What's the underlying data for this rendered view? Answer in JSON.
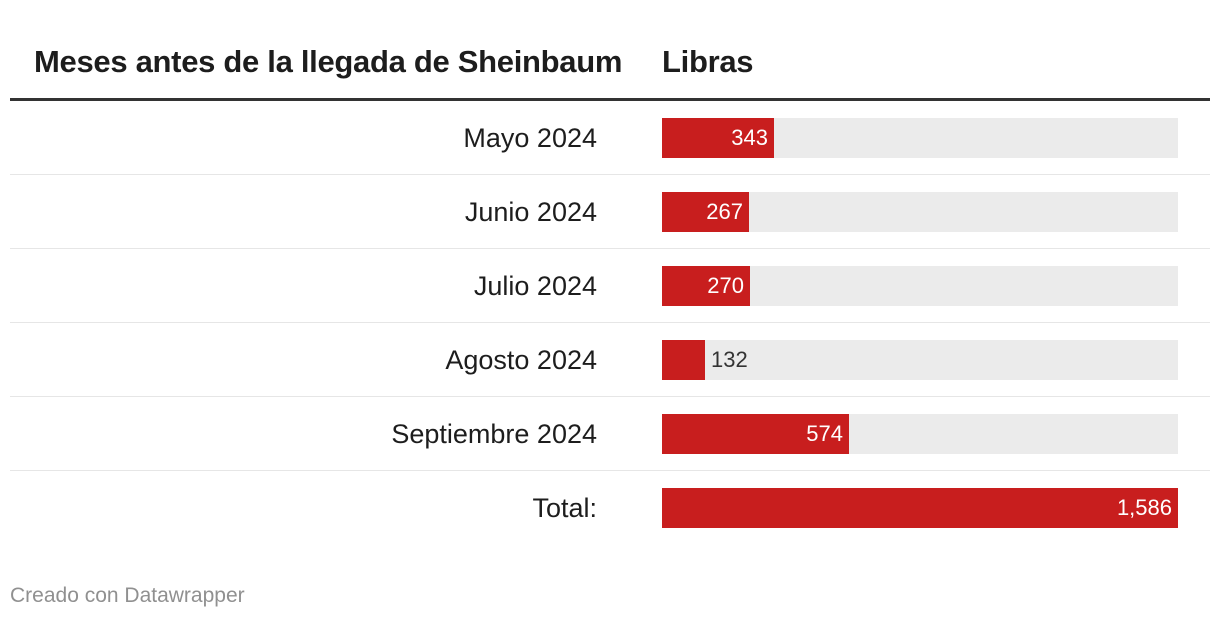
{
  "header": {
    "col1": "Meses antes de la llegada de Sheinbaum",
    "col2": "Libras"
  },
  "chart_data": {
    "type": "bar",
    "orientation": "horizontal",
    "categories": [
      "Mayo 2024",
      "Junio 2024",
      "Julio 2024",
      "Agosto 2024",
      "Septiembre 2024",
      "Total:"
    ],
    "values": [
      343,
      267,
      270,
      132,
      574,
      1586
    ],
    "value_labels": [
      "343",
      "267",
      "270",
      "132",
      "574",
      "1,586"
    ],
    "xlim": [
      0,
      1586
    ],
    "bar_color": "#c81e1e",
    "track_color": "#ebebeb"
  },
  "footer": {
    "credit": "Creado con Datawrapper"
  }
}
